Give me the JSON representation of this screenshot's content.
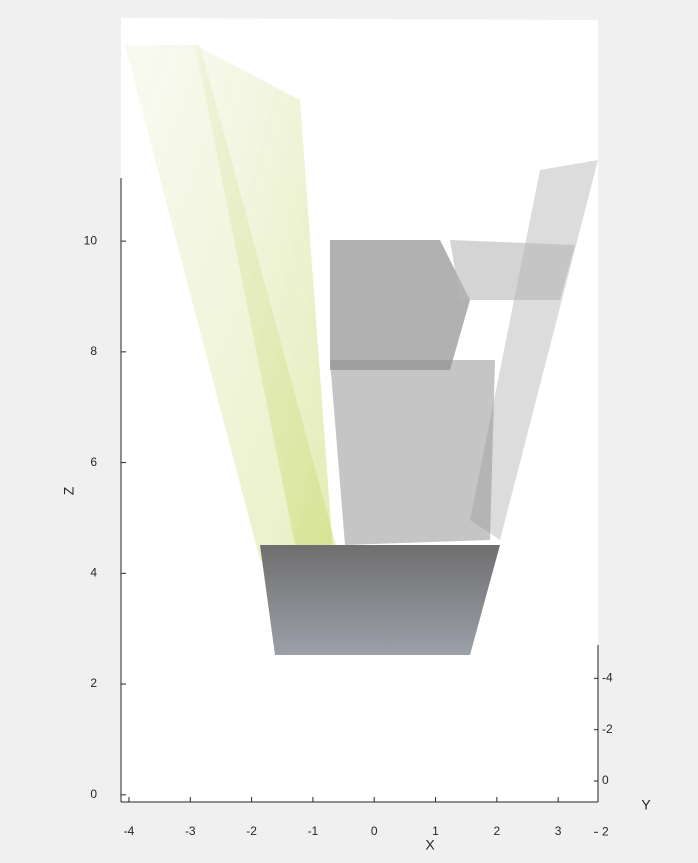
{
  "chart_data": {
    "type": "scatter3",
    "xlabel": "X",
    "ylabel": "Y",
    "zlabel": "Z",
    "xlim": [
      -4.13,
      3.65
    ],
    "xticks": [
      -4,
      -3,
      -2,
      -1,
      0,
      1,
      2,
      3
    ],
    "ylim": [
      -5.3,
      2.3
    ],
    "yticks": [
      -4,
      -2,
      0,
      2
    ],
    "zlim": [
      -0.13,
      11.14
    ],
    "zticks": [
      0,
      2,
      4,
      6,
      8,
      10
    ]
  }
}
